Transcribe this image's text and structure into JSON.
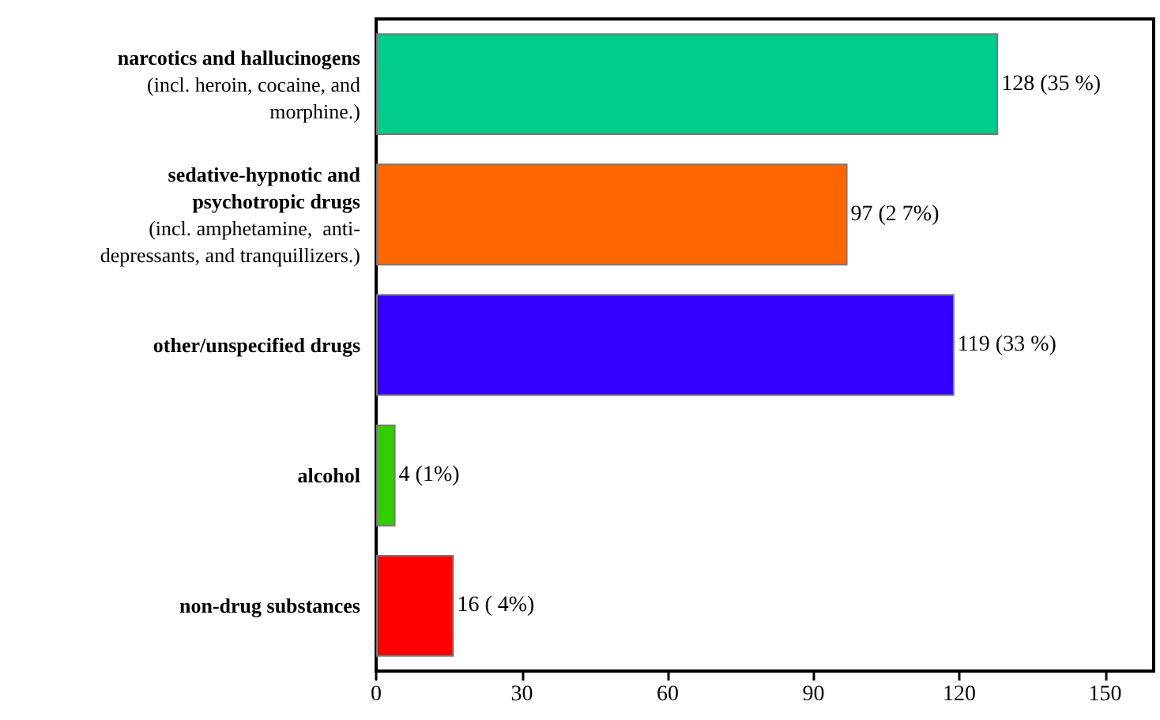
{
  "chart_data": {
    "type": "bar",
    "orientation": "horizontal",
    "categories": [
      "narcotics and hallucinogens\n(incl. heroin, cocaine, and\nmorphine.)",
      "sedative-hypnotic and\npsychotropic drugs\n(incl. amphetamine,  anti-\ndepressants, and tranquillizers.)",
      "other/unspecified drugs",
      "alcohol",
      "non-drug substances"
    ],
    "values": [
      128,
      97,
      119,
      4,
      16
    ],
    "colors": [
      "#00cc8e",
      "#ff6600",
      "#3300ff",
      "#33cc00",
      "#ff0000"
    ],
    "value_labels": [
      "128 (35 %)",
      "97 (2 7%)",
      "119 (33 %)",
      "4 (1%)",
      "16 ( 4%)"
    ],
    "xlim": [
      0,
      160
    ],
    "xticks": [
      0,
      30,
      60,
      90,
      120,
      150
    ],
    "grid": false
  }
}
